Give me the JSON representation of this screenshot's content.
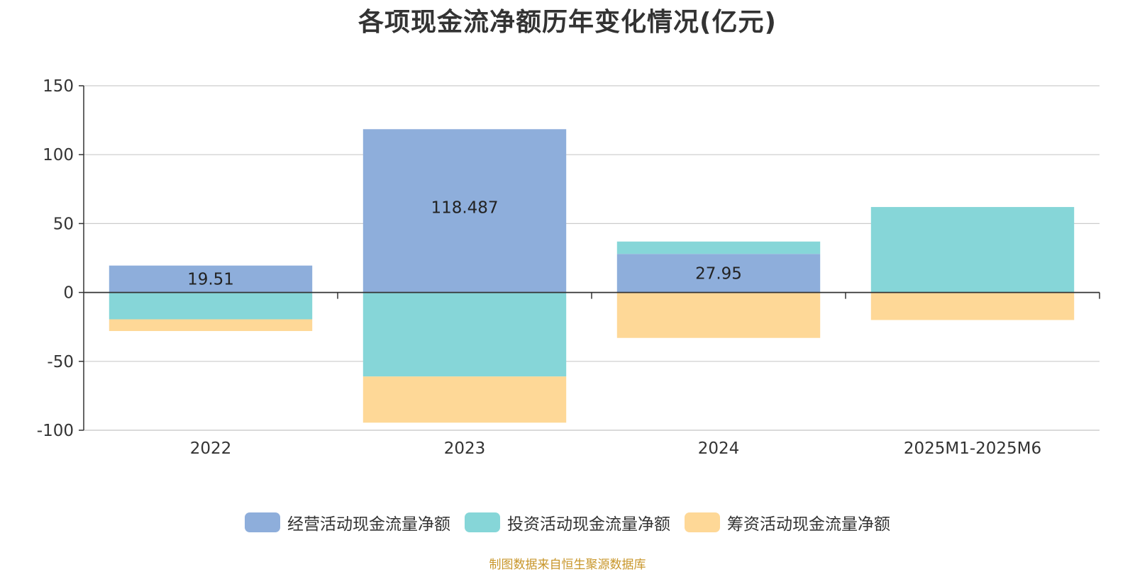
{
  "colors": {
    "operating": "#8eaedb",
    "investing": "#86d6d8",
    "financing": "#fed897",
    "axis": "#333333",
    "grid": "#cccccc",
    "source": "#c8962a"
  },
  "source_text": "制图数据来自恒生聚源数据库",
  "chart_data": {
    "type": "bar",
    "stacked": true,
    "title": "各项现金流净额历年变化情况(亿元)",
    "xlabel": "",
    "ylabel": "",
    "ylim": [
      -100,
      150
    ],
    "yticks": [
      150,
      100,
      50,
      0,
      -50,
      -100
    ],
    "grid": true,
    "legend_position": "bottom",
    "categories": [
      "2022",
      "2023",
      "2024",
      "2025M1-2025M6"
    ],
    "series": [
      {
        "name": "经营活动现金流量净额",
        "color": "#8eaedb",
        "values": [
          19.51,
          118.487,
          27.95,
          0
        ],
        "labels": [
          "19.51",
          "118.487",
          "27.95",
          ""
        ]
      },
      {
        "name": "投资活动现金流量净额",
        "color": "#86d6d8",
        "values": [
          -19.5,
          -61,
          9,
          62
        ],
        "labels": [
          "",
          "",
          "",
          ""
        ]
      },
      {
        "name": "筹资活动现金流量净额",
        "color": "#fed897",
        "values": [
          -8.5,
          -33.5,
          -33,
          -20
        ],
        "labels": [
          "",
          "",
          "",
          ""
        ]
      }
    ]
  }
}
